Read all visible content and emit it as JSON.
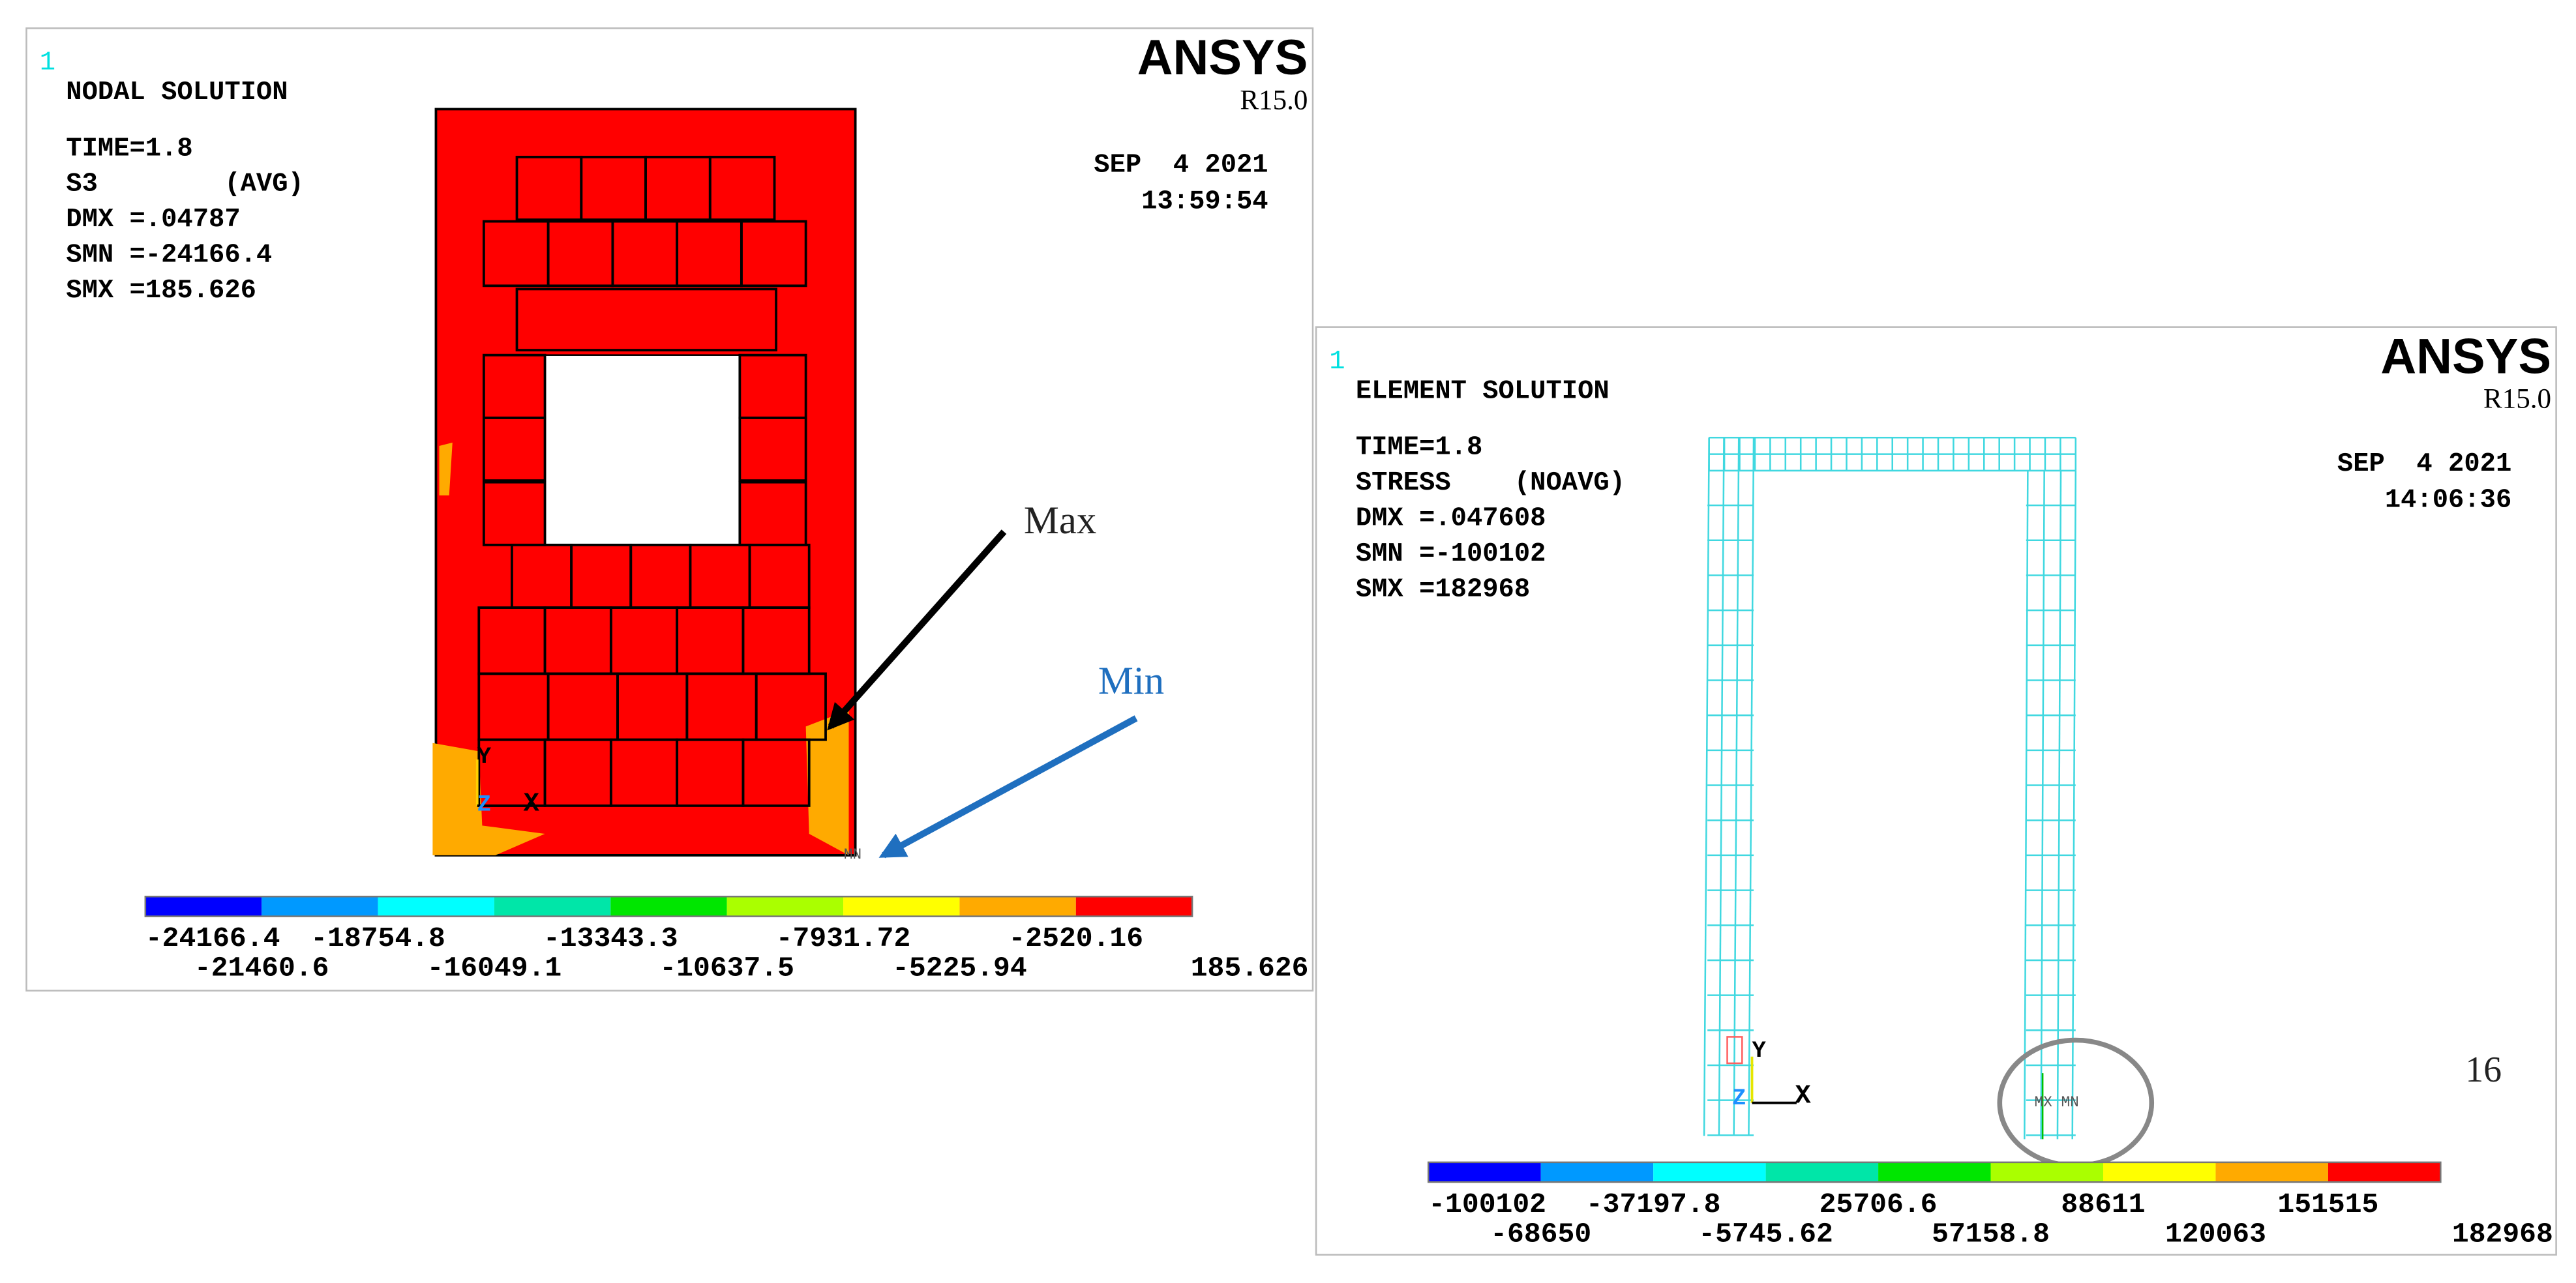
{
  "panels": [
    {
      "number": "1",
      "title": "NODAL SOLUTION",
      "info": [
        "TIME=1.8",
        "S3        (AVG)",
        "DMX =.04787",
        "SMN =-24166.4",
        "SMX =185.626"
      ],
      "brand": "ANSYS",
      "version": "R15.0",
      "date": "SEP  4 2021",
      "time": "13:59:54",
      "legend_top": [
        "-24166.4",
        "-18754.8",
        "-13343.3",
        "-7931.72",
        "-2520.16"
      ],
      "legend_bottom": [
        "-21460.6",
        "-16049.1",
        "-10637.5",
        "-5225.94",
        "185.626"
      ],
      "axes": [
        "Y",
        "Z",
        "X"
      ],
      "marker": "MN"
    },
    {
      "number": "1",
      "title": "ELEMENT SOLUTION",
      "info": [
        "TIME=1.8",
        "STRESS    (NOAVG)",
        "DMX =.047608",
        "SMN =-100102",
        "SMX =182968"
      ],
      "brand": "ANSYS",
      "version": "R15.0",
      "date": "SEP  4 2021",
      "time": "14:06:36",
      "legend_top": [
        "-100102",
        "-37197.8",
        "25706.6",
        "88611",
        "151515"
      ],
      "legend_bottom": [
        "-68650",
        "-5745.62",
        "57158.8",
        "120063",
        "182968"
      ],
      "axes": [
        "Y",
        "Z",
        "X"
      ],
      "marker": "MX MN"
    }
  ],
  "annotations": {
    "max": "Max",
    "min": "Min"
  },
  "page_number": "16"
}
